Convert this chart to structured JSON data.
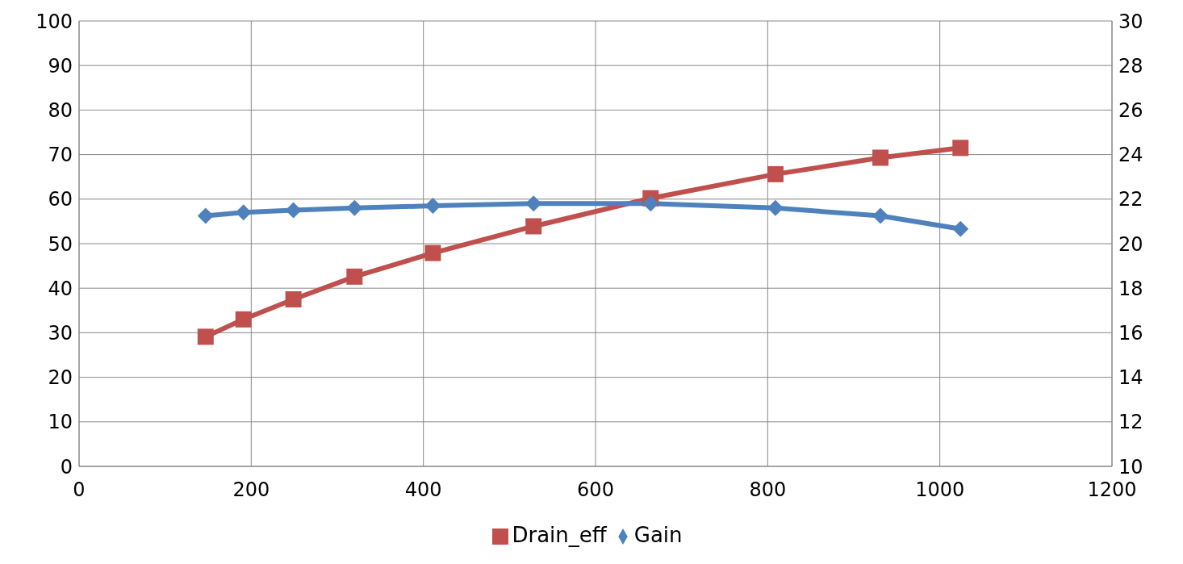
{
  "chart_data": {
    "type": "line",
    "x": [
      147,
      191,
      249,
      320,
      411,
      528,
      664,
      809,
      931,
      1024
    ],
    "series": [
      {
        "name": "Drain_eff",
        "color": "#c0504d",
        "marker": "square",
        "values": [
          29.1,
          33.0,
          37.5,
          42.6,
          47.9,
          53.9,
          60.2,
          65.6,
          69.3,
          71.5
        ]
      },
      {
        "name": "Gain",
        "color": "#4f81bd",
        "marker": "diamond",
        "axis": "y2",
        "values": [
          21.25,
          21.4,
          21.5,
          21.6,
          21.7,
          21.8,
          21.8,
          21.6,
          21.25,
          20.66
        ]
      }
    ],
    "xlim": [
      0,
      1200
    ],
    "xticks": [
      0,
      200,
      400,
      600,
      800,
      1000,
      1200
    ],
    "ylim": [
      0,
      100
    ],
    "yticks": [
      0,
      10,
      20,
      30,
      40,
      50,
      60,
      70,
      80,
      90,
      100
    ],
    "y2lim": [
      10,
      30
    ],
    "y2ticks": [
      10,
      12,
      14,
      16,
      18,
      20,
      22,
      24,
      26,
      28,
      30
    ],
    "grid": true,
    "legend": "bottom",
    "line_style": "solid"
  }
}
